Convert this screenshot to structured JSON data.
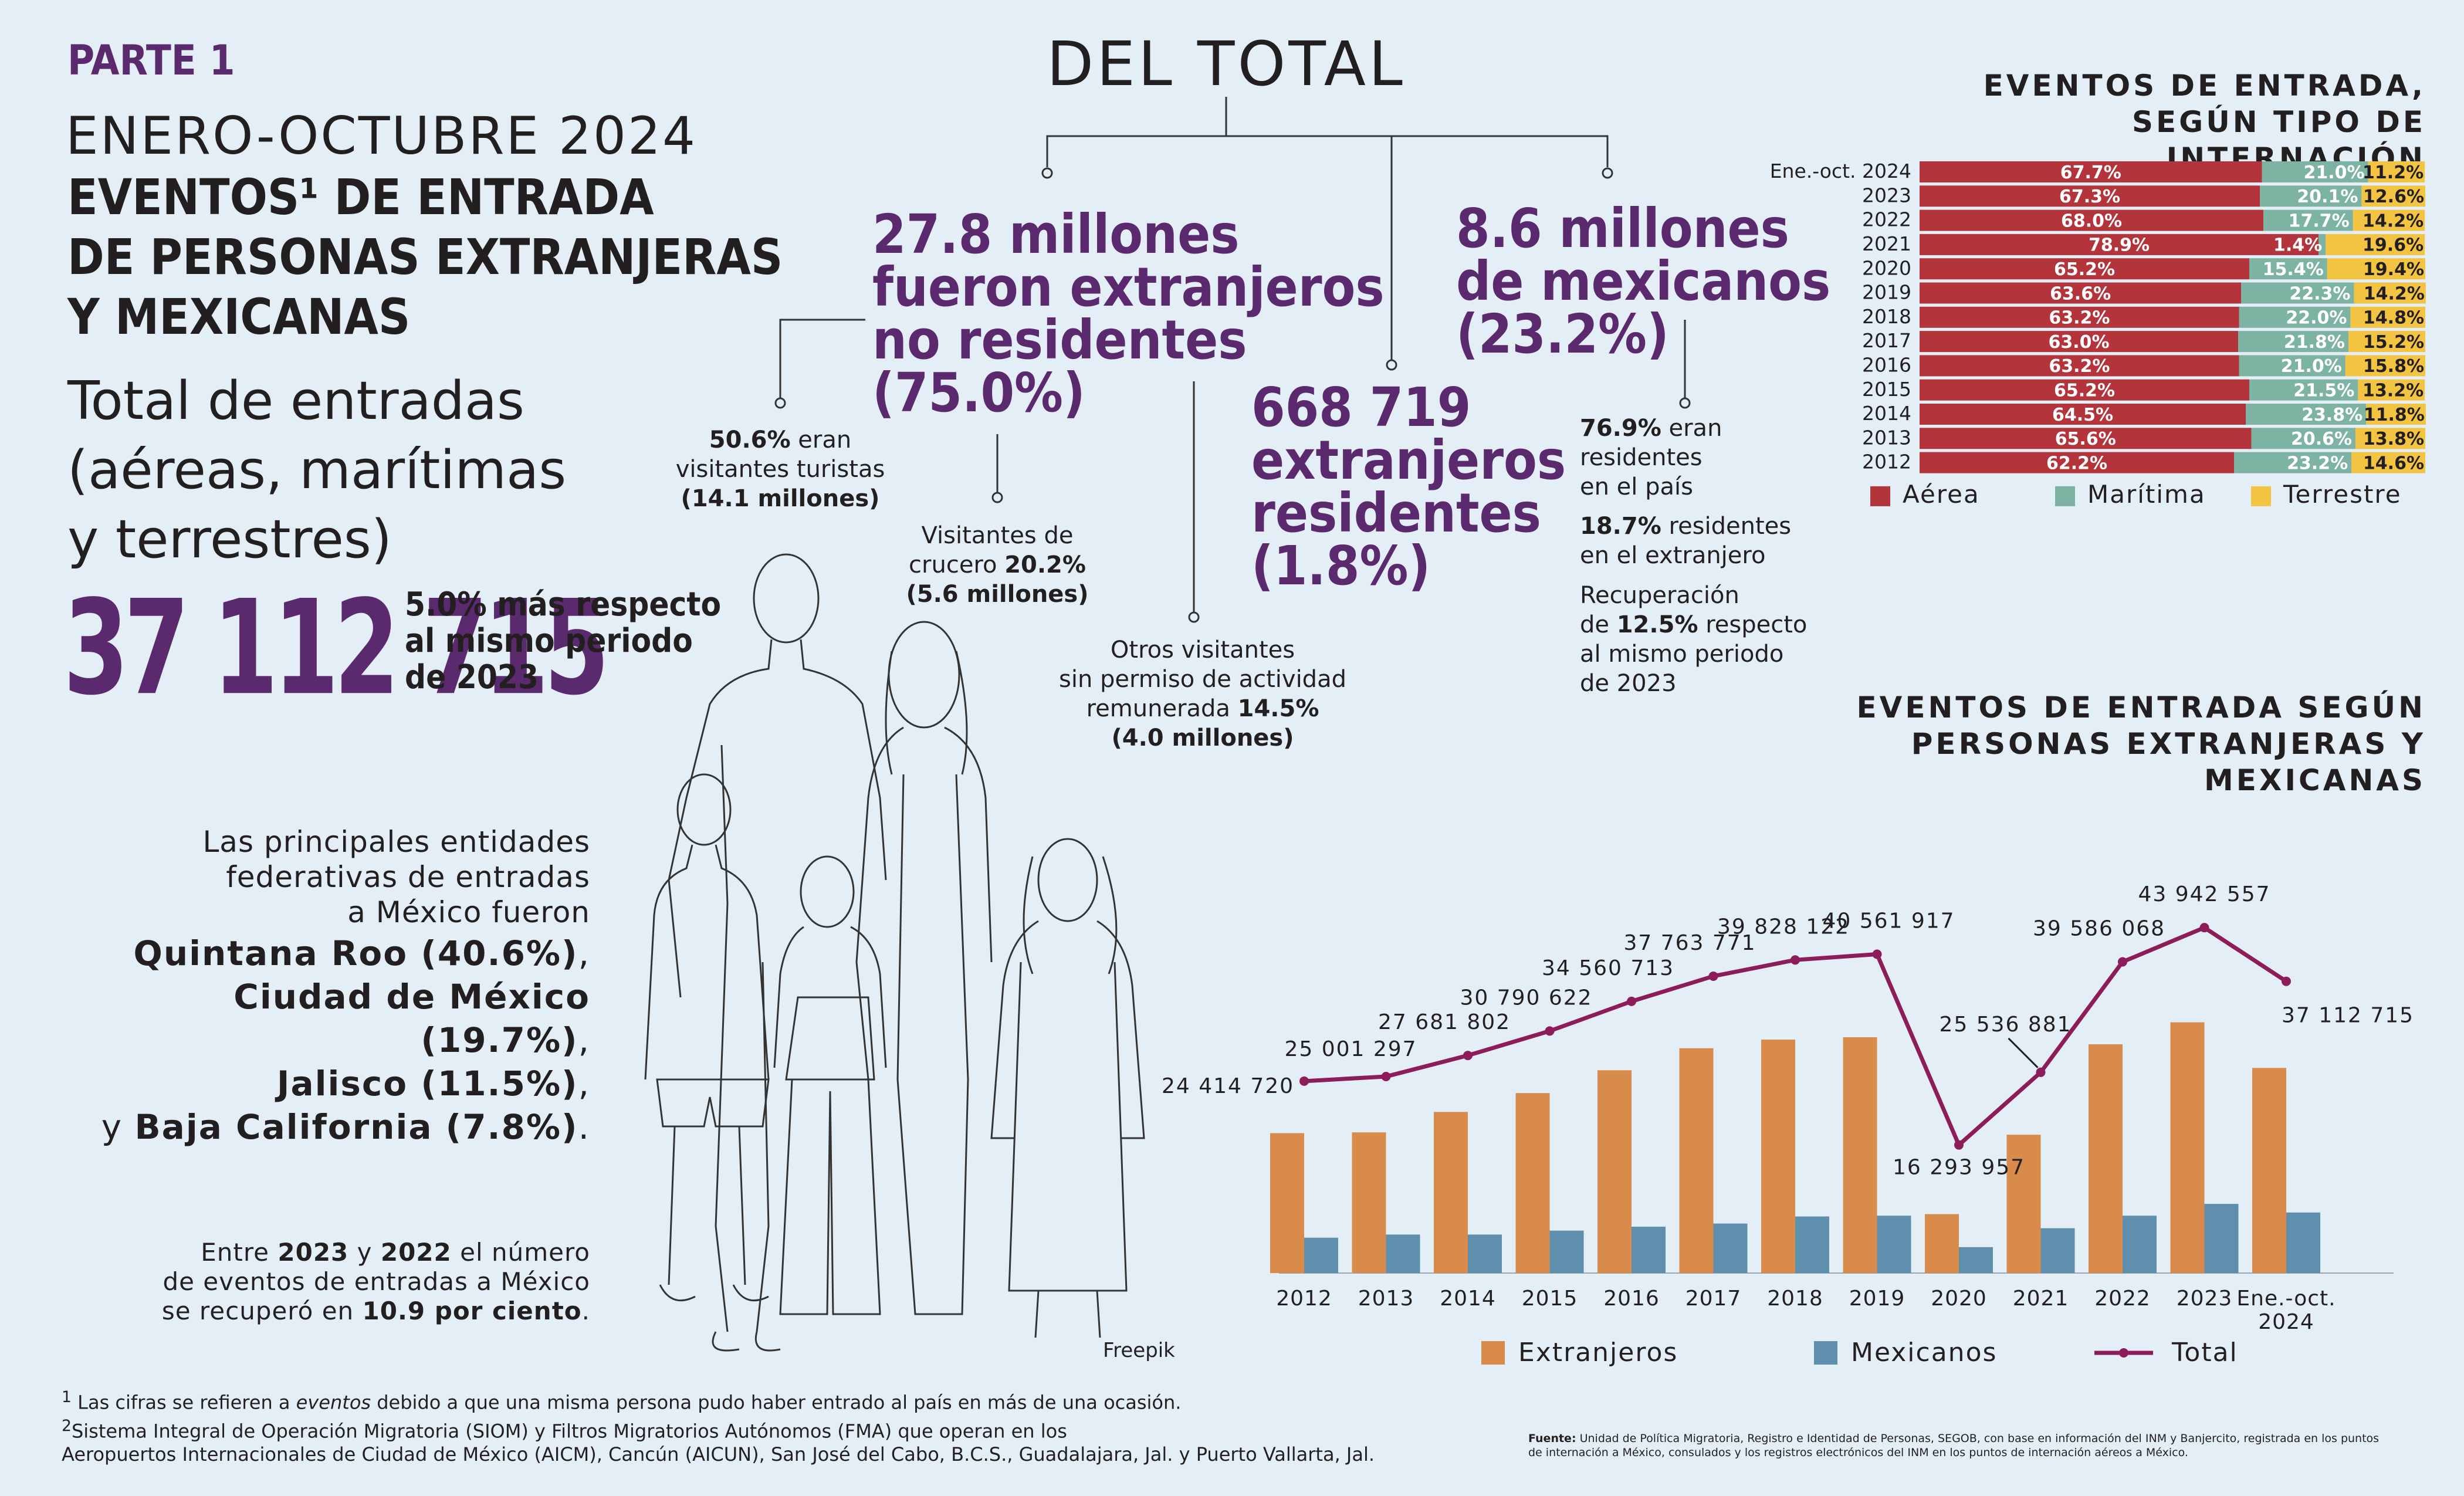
{
  "header": {
    "parte": "PARTE 1",
    "period": "ENERO-OCTUBRE 2024",
    "title_l1": "EVENTOS¹ DE ENTRADA",
    "title_l2": "DE PERSONAS EXTRANJERAS",
    "title_l3": "Y MEXICANAS",
    "subtitle_l1": "Total de entradas",
    "subtitle_l2": "(aéreas, marítimas",
    "subtitle_l3": "y terrestres)",
    "total_number": "37 112 715",
    "total_note_l1": "5.0% más respecto",
    "total_note_l2": "al mismo periodo",
    "total_note_l3": "de 2023"
  },
  "del_total": {
    "title": "DEL TOTAL",
    "foreign_l1": "27.8 millones",
    "foreign_l2": "fueron extranjeros",
    "foreign_l3": "no residentes",
    "foreign_l4": "(75.0%)",
    "mexican_l1": "8.6 millones",
    "mexican_l2": "de mexicanos",
    "mexican_l3": "(23.2%)",
    "residents_l1": "668 719",
    "residents_l2": "extranjeros",
    "residents_l3": "residentes",
    "residents_l4": "(1.8%)",
    "tourists_pct": "50.6%",
    "tourists_l1": " eran",
    "tourists_l2": "visitantes turistas",
    "tourists_l3": "(14.1 millones)",
    "cruise_l1": "Visitantes de",
    "cruise_l2a": "crucero ",
    "cruise_pct": "20.2%",
    "cruise_l3": "(5.6 millones)",
    "other_l1": "Otros visitantes",
    "other_l2": "sin permiso de actividad",
    "other_l3a": "remunerada ",
    "other_pct": "14.5%",
    "other_l4": "(4.0 millones)",
    "mx_res_pct": "76.9%",
    "mx_res_l1": " eran",
    "mx_res_l2": "residentes",
    "mx_res_l3": "en el país",
    "mx_abroad_pct": "18.7%",
    "mx_abroad_l1": " residentes",
    "mx_abroad_l2": "en el extranjero",
    "recovery_l1": "Recuperación",
    "recovery_l2a": "de ",
    "recovery_pct": "12.5%",
    "recovery_l2b": " respecto",
    "recovery_l3": "al mismo periodo",
    "recovery_l4": "de 2023"
  },
  "states": {
    "intro_l1": "Las principales entidades",
    "intro_l2": "federativas de entradas",
    "intro_l3": "a México fueron",
    "s1": "Quintana Roo (40.6%)",
    "s2": "Ciudad de México (19.7%)",
    "s3": "Jalisco (11.5%)",
    "s4": "Baja California (7.8%)",
    "comma": ",",
    "y": "y ",
    "dot": "."
  },
  "recovery_note": {
    "l1a": "Entre ",
    "y1": "2023",
    "l1b": " y ",
    "y2": "2022",
    "l1c": " el número",
    "l2": "de eventos de entradas a México",
    "l3a": "se recuperó en ",
    "l3b": "10.9 por ciento",
    "l3c": "."
  },
  "credit": "Freepik",
  "footnotes": {
    "n1_sup": "1",
    "n1a": " Las cifras se refieren a ",
    "n1_em": "eventos",
    "n1b": " debido a que una misma persona pudo haber entrado al país en más de una ocasión.",
    "n2_sup": "2",
    "n2_l1": "Sistema Integral de Operación Migratoria (SIOM) y Filtros Migratorios Autónomos (FMA) que operan en los",
    "n2_l2": "Aeropuertos Internacionales de Ciudad de México (AICM), Cancún (AICUN), San José del Cabo, B.C.S., Guadalajara, Jal. y Puerto Vallarta, Jal."
  },
  "source": {
    "label": "Fuente:",
    "l1": " Unidad de Política Migratoria, Registro e Identidad de Personas, SEGOB, con base en información del INM y Banjercito, registrada en los puntos",
    "l2": "de internación a México, consulados y los registros electrónicos del INM en los puntos de internación aéreos a México."
  },
  "colors": {
    "purple": "#5b2a6e",
    "aerea": "#b3343b",
    "maritima": "#7db3a3",
    "terrestre": "#f3c342",
    "extranjeros": "#d98b4b",
    "mexicanos": "#5e8fad",
    "total_line": "#8c1c5a"
  },
  "chart_data": [
    {
      "type": "bar",
      "stacked": true,
      "orientation": "horizontal",
      "title": "EVENTOS DE ENTRADA, SEGÚN TIPO DE INTERNACIÓN",
      "title_l1": "EVENTOS DE ENTRADA,",
      "title_l2": "SEGÚN TIPO DE INTERNACIÓN",
      "categories": [
        "Ene.-oct. 2024",
        "2023",
        "2022",
        "2021",
        "2020",
        "2019",
        "2018",
        "2017",
        "2016",
        "2015",
        "2014",
        "2013",
        "2012"
      ],
      "series": [
        {
          "name": "Aérea",
          "values": [
            67.7,
            67.3,
            68.0,
            78.9,
            65.2,
            63.6,
            63.2,
            63.0,
            63.2,
            65.2,
            64.5,
            65.6,
            62.2
          ],
          "labels": [
            "67.7%",
            "67.3%",
            "68.0%",
            "78.9%",
            "65.2%",
            "63.6%",
            "63.2%",
            "63.0%",
            "63.2%",
            "65.2%",
            "64.5%",
            "65.6%",
            "62.2%"
          ]
        },
        {
          "name": "Marítima",
          "values": [
            21.0,
            20.1,
            17.7,
            1.4,
            15.4,
            22.3,
            22.0,
            21.8,
            21.0,
            21.5,
            23.8,
            20.6,
            23.2
          ],
          "labels": [
            "21.0%",
            "20.1%",
            "17.7%",
            "1.4%",
            "15.4%",
            "22.3%",
            "22.0%",
            "21.8%",
            "21.0%",
            "21.5%",
            "23.8%",
            "20.6%",
            "23.2%"
          ]
        },
        {
          "name": "Terrestre",
          "values": [
            11.2,
            12.6,
            14.2,
            19.6,
            19.4,
            14.2,
            14.8,
            15.2,
            15.8,
            13.2,
            11.8,
            13.8,
            14.6
          ],
          "labels": [
            "11.2%",
            "12.6%",
            "14.2%",
            "19.6%",
            "19.4%",
            "14.2%",
            "14.8%",
            "15.2%",
            "15.8%",
            "13.2%",
            "11.8%",
            "13.8%",
            "14.6%"
          ]
        }
      ],
      "legend_position": "bottom"
    },
    {
      "type": "bar",
      "title": "EVENTOS DE ENTRADA SEGÚN PERSONAS EXTRANJERAS Y MEXICANAS",
      "title_l1": "EVENTOS DE ENTRADA SEGÚN",
      "title_l2": "PERSONAS EXTRANJERAS Y MEXICANAS",
      "categories": [
        "2012",
        "2013",
        "2014",
        "2015",
        "2016",
        "2017",
        "2018",
        "2019",
        "2020",
        "2021",
        "2022",
        "2023",
        "Ene.-oct. 2024"
      ],
      "category_lines": [
        [
          "2012"
        ],
        [
          "2013"
        ],
        [
          "2014"
        ],
        [
          "2015"
        ],
        [
          "2016"
        ],
        [
          "2017"
        ],
        [
          "2018"
        ],
        [
          "2019"
        ],
        [
          "2020"
        ],
        [
          "2021"
        ],
        [
          "2022"
        ],
        [
          "2023"
        ],
        [
          "Ene.-oct.",
          "2024"
        ]
      ],
      "series": [
        {
          "name": "Extranjeros",
          "type": "bar",
          "values": [
            17800000,
            17900000,
            20500000,
            22900000,
            25800000,
            28600000,
            29700000,
            30000000,
            7500000,
            17600000,
            29100000,
            31900000,
            26100000
          ]
        },
        {
          "name": "Mexicanos",
          "type": "bar",
          "values": [
            4500000,
            4900000,
            4900000,
            5400000,
            5900000,
            6300000,
            7200000,
            7300000,
            3300000,
            5700000,
            7300000,
            8800000,
            7700000
          ]
        },
        {
          "name": "Total",
          "type": "line",
          "values": [
            24414720,
            25001297,
            27681802,
            30790622,
            34560713,
            37763771,
            39828122,
            40561917,
            16293957,
            25536881,
            39586068,
            43942557,
            37112715
          ],
          "labels": [
            "24 414 720",
            "25 001 297",
            "27 681 802",
            "30 790 622",
            "34 560 713",
            "37 763 771",
            "39 828 122",
            "40 561 917",
            "16 293 957",
            "25 536 881",
            "39 586 068",
            "43 942 557",
            "37 112 715"
          ]
        }
      ],
      "ylim": [
        0,
        50000000
      ],
      "legend_position": "bottom",
      "grid": false
    }
  ]
}
